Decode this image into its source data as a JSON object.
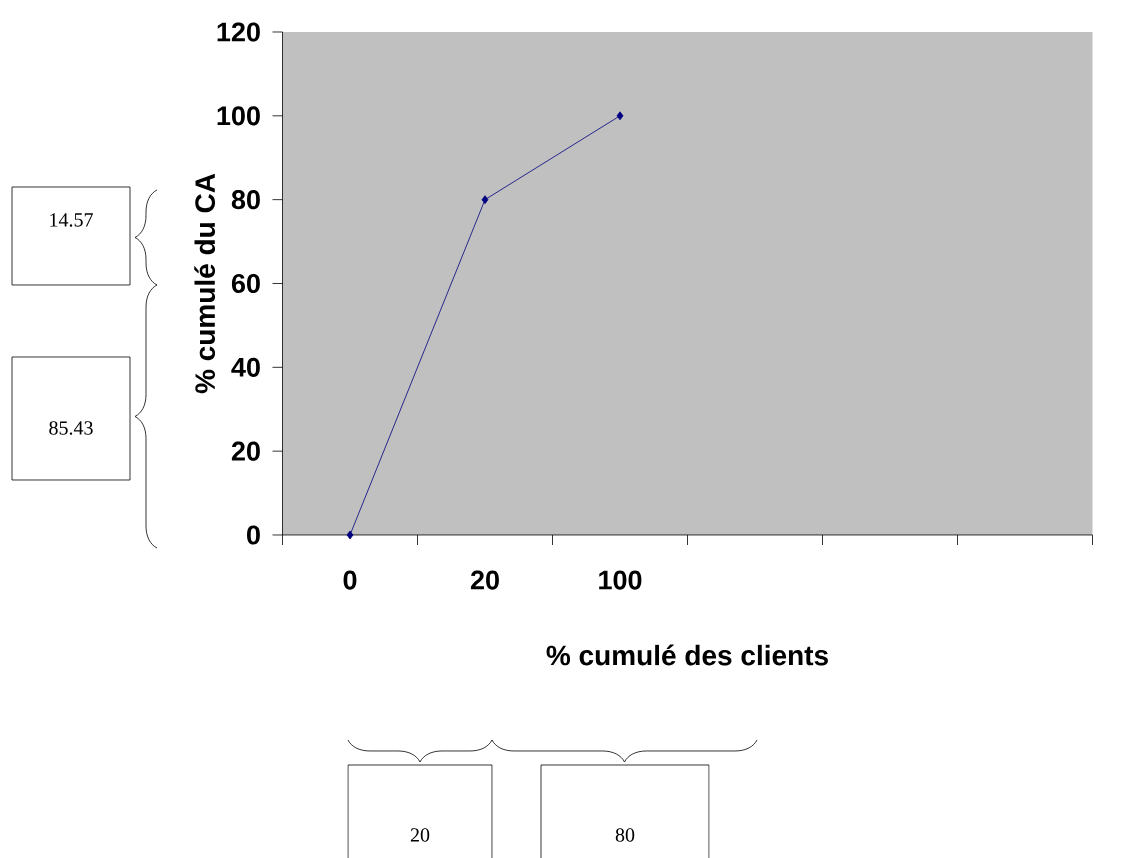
{
  "chart_data": {
    "type": "line",
    "xlabel": "% cumulé des clients",
    "ylabel": "% cumulé du CA",
    "categories": [
      "0",
      "20",
      "100",
      null,
      null,
      null
    ],
    "values": [
      0,
      80,
      100,
      null,
      null,
      null
    ],
    "color": "#000080",
    "marker": "diamond",
    "ylim": [
      0,
      120
    ],
    "yticks": [
      0,
      20,
      40,
      60,
      80,
      100,
      120
    ],
    "annotations": [
      "14.57",
      "85.43",
      "20",
      "80"
    ]
  }
}
